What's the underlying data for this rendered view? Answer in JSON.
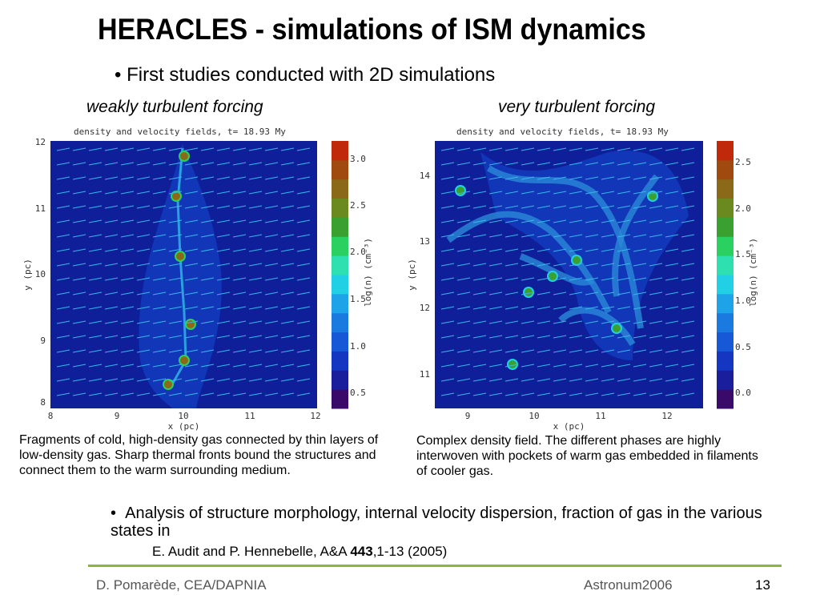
{
  "header": {
    "title": "HERACLES - simulations of ISM dynamics"
  },
  "bullets": [
    "First studies conducted with 2D simulations"
  ],
  "panels": [
    {
      "heading": "weakly turbulent forcing",
      "plot_title": "density  and velocity fields, t= 18.93 My",
      "x_label": "x (pc)",
      "y_label": "y (pc)",
      "x_ticks": [
        "8",
        "9",
        "10",
        "11",
        "12"
      ],
      "y_ticks": [
        "12",
        "11",
        "10",
        "9",
        "8"
      ],
      "colorbar_label": "log(n) (cm⁻³)",
      "colorbar_ticks": [
        "3.0",
        "2.5",
        "2.0",
        "1.5",
        "1.0",
        "0.5"
      ],
      "caption": "Fragments of cold, high-density gas connected by thin layers of low-density gas. Sharp thermal fronts bound the structures and connect them to the warm surrounding medium."
    },
    {
      "heading": "very turbulent forcing",
      "plot_title": "density  and velocity fields, t= 18.93 My",
      "x_label": "x (pc)",
      "y_label": "y (pc)",
      "x_ticks": [
        "9",
        "10",
        "11",
        "12"
      ],
      "y_ticks": [
        "14",
        "13",
        "12",
        "11"
      ],
      "colorbar_label": "log(n) (cm⁻³)",
      "colorbar_ticks": [
        "2.5",
        "2.0",
        "1.5",
        "1.0",
        "0.5",
        "0.0"
      ],
      "caption": "Complex density field. The different phases are highly interwoven with pockets of warm gas embedded in filaments of cooler gas."
    }
  ],
  "analysis": "Analysis of structure morphology, internal velocity dispersion, fraction of gas in the various states in",
  "reference": {
    "authors": "E. Audit and P. Hennebelle, A&A ",
    "volume": "443",
    "pages": ",1-13 (2005)"
  },
  "footer": {
    "left": "D. Pomarède, CEA/DAPNIA",
    "center": "Astronum2006",
    "page": "13"
  }
}
